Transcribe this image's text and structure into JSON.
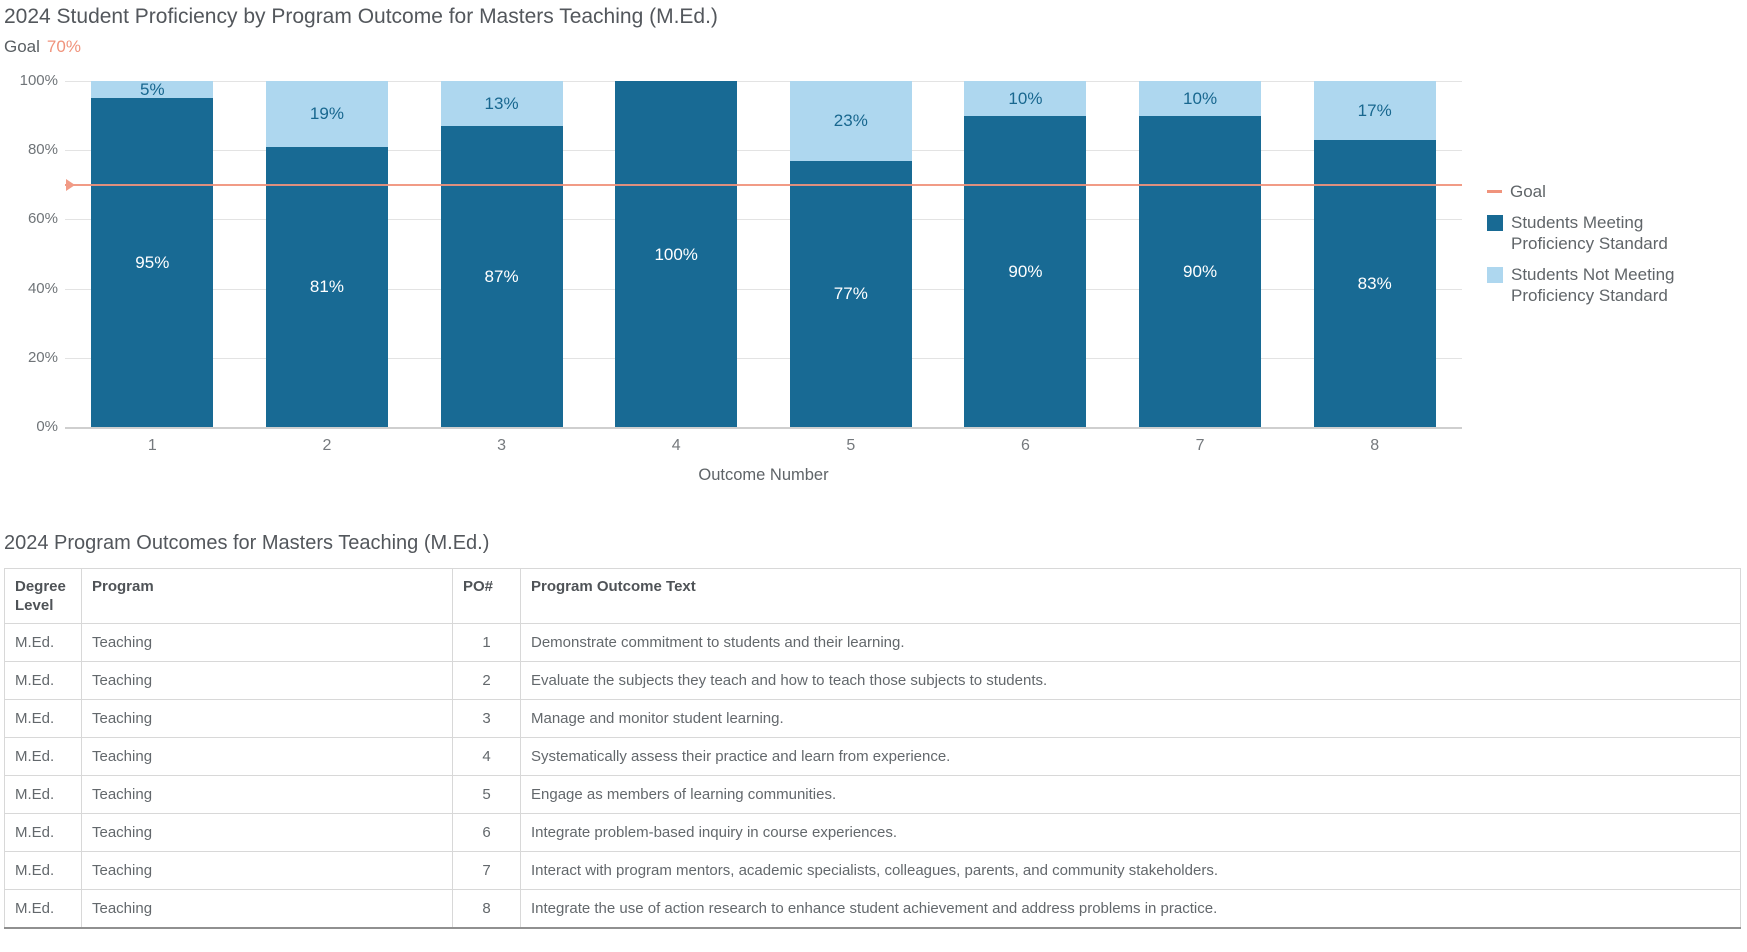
{
  "chart": {
    "title": "2024 Student Proficiency by Program Outcome for Masters Teaching (M.Ed.)",
    "goal_label": "Goal",
    "goal_value": "70%",
    "xlabel": "Outcome Number",
    "legend": [
      {
        "label": "Goal",
        "swatch": "line",
        "color": "#f0937c"
      },
      {
        "label": "Students Meeting Proficiency Standard",
        "swatch": "square",
        "color": "#186a94"
      },
      {
        "label": "Students Not Meeting Proficiency Standard",
        "swatch": "square",
        "color": "#aed7ef"
      }
    ]
  },
  "chart_data": {
    "type": "bar",
    "stacked": true,
    "title": "2024 Student Proficiency by Program Outcome for Masters Teaching (M.Ed.)",
    "xlabel": "Outcome Number",
    "ylabel": "",
    "categories": [
      "1",
      "2",
      "3",
      "4",
      "5",
      "6",
      "7",
      "8"
    ],
    "series": [
      {
        "name": "Students Meeting Proficiency Standard",
        "color": "#186a94",
        "values": [
          95,
          81,
          87,
          100,
          77,
          90,
          90,
          83
        ]
      },
      {
        "name": "Students Not Meeting Proficiency Standard",
        "color": "#aed7ef",
        "values": [
          5,
          19,
          13,
          0,
          23,
          10,
          10,
          17
        ]
      }
    ],
    "data_labels": {
      "meeting": [
        "95%",
        "81%",
        "87%",
        "100%",
        "77%",
        "90%",
        "90%",
        "83%"
      ],
      "not_meeting": [
        "5%",
        "19%",
        "13%",
        "",
        "23%",
        "10%",
        "10%",
        "17%"
      ]
    },
    "goal_line": 70,
    "goal_color": "#f0937c",
    "ylim": [
      0,
      100
    ],
    "yticks": [
      "0%",
      "20%",
      "40%",
      "60%",
      "80%",
      "100%"
    ],
    "grid": true,
    "legend_position": "right"
  },
  "table": {
    "title": "2024 Program Outcomes for Masters Teaching (M.Ed.)",
    "columns": [
      "Degree Level",
      "Program",
      "PO#",
      "Program Outcome Text"
    ],
    "rows": [
      [
        "M.Ed.",
        "Teaching",
        "1",
        "Demonstrate commitment to students and their learning."
      ],
      [
        "M.Ed.",
        "Teaching",
        "2",
        "Evaluate the subjects they teach and how to teach those subjects to students."
      ],
      [
        "M.Ed.",
        "Teaching",
        "3",
        "Manage and monitor student learning."
      ],
      [
        "M.Ed.",
        "Teaching",
        "4",
        "Systematically assess their practice and learn from experience."
      ],
      [
        "M.Ed.",
        "Teaching",
        "5",
        "Engage as members of learning communities."
      ],
      [
        "M.Ed.",
        "Teaching",
        "6",
        "Integrate problem-based inquiry in course experiences."
      ],
      [
        "M.Ed.",
        "Teaching",
        "7",
        "Interact with program mentors, academic specialists, colleagues, parents, and community stakeholders."
      ],
      [
        "M.Ed.",
        "Teaching",
        "8",
        "Integrate the use of action research to enhance student achievement and address problems in practice."
      ]
    ]
  },
  "colors": {
    "meeting_bar": "#186a94",
    "not_meeting_bar": "#aed7ef",
    "goal_line": "#f0937c",
    "title_text": "#53575c",
    "axis_text": "#6f7478",
    "gridline": "#e3e3e3",
    "table_border": "#d8d8d8"
  }
}
